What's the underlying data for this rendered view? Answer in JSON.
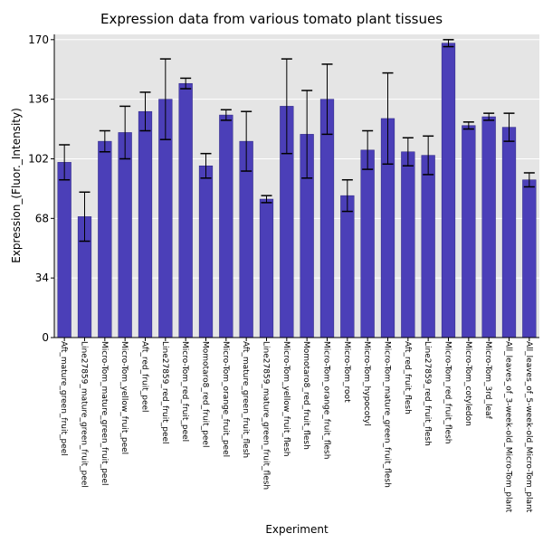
{
  "chart_data": {
    "type": "bar",
    "title": "Expression data from various tomato plant tissues",
    "xlabel": "Experiment",
    "ylabel": "Expression_(Fluor._Intensity)",
    "ylim": [
      0,
      173
    ],
    "yticks": [
      0,
      34,
      68,
      102,
      136,
      170
    ],
    "colors": {
      "bar": "#4b3fb8",
      "bar_edge": "#2a2380",
      "plot_bg": "#e5e5e5",
      "grid": "#ffffff",
      "error": "#000000"
    },
    "categories": [
      "Aft_mature_green_fruit_peel",
      "Line27859_mature_green_fruit_peel",
      "Micro-Tom_mature_green_fruit_peel",
      "Micro-Tom_yellow_fruit_peel",
      "Aft_red_fruit_peel",
      "Line27859_red_fruit_peel",
      "Micro-Tom_red_fruit_peel",
      "Momotaro8_red_fruit_peel",
      "Micro-Tom_orange_fruit_peel",
      "Aft_mature_green_fruit_flesh",
      "Line27859_mature_green_fruit_flesh",
      "Micro-Tom_yellow_fruit_flesh",
      "Momotaro8_red_fruit_flesh",
      "Micro-Tom_orange_fruit_flesh",
      "Micro-Tom_root",
      "Micro-Tom_hypocotyl",
      "Micro-Tom_mature_green_fruit_flesh",
      "Aft_red_fruit_flesh",
      "Line27859_red_fruit_flesh",
      "Micro-Tom_red_fruit_flesh",
      "Micro-Tom_cotyledon",
      "Micro-Tom_3rd_leaf",
      "All_leaves_of_3-week-old_Micro-Tom_plant",
      "All_leaves_of_5-week-old_Micro-Tom_plant"
    ],
    "values": [
      100,
      69,
      112,
      117,
      129,
      136,
      145,
      98,
      127,
      112,
      79,
      132,
      116,
      136,
      81,
      107,
      125,
      106,
      104,
      168,
      121,
      126,
      120,
      90
    ],
    "errors": [
      10,
      14,
      6,
      15,
      11,
      23,
      3,
      7,
      3,
      17,
      2,
      27,
      25,
      20,
      9,
      11,
      26,
      8,
      11,
      2,
      2,
      2,
      8,
      4
    ]
  }
}
